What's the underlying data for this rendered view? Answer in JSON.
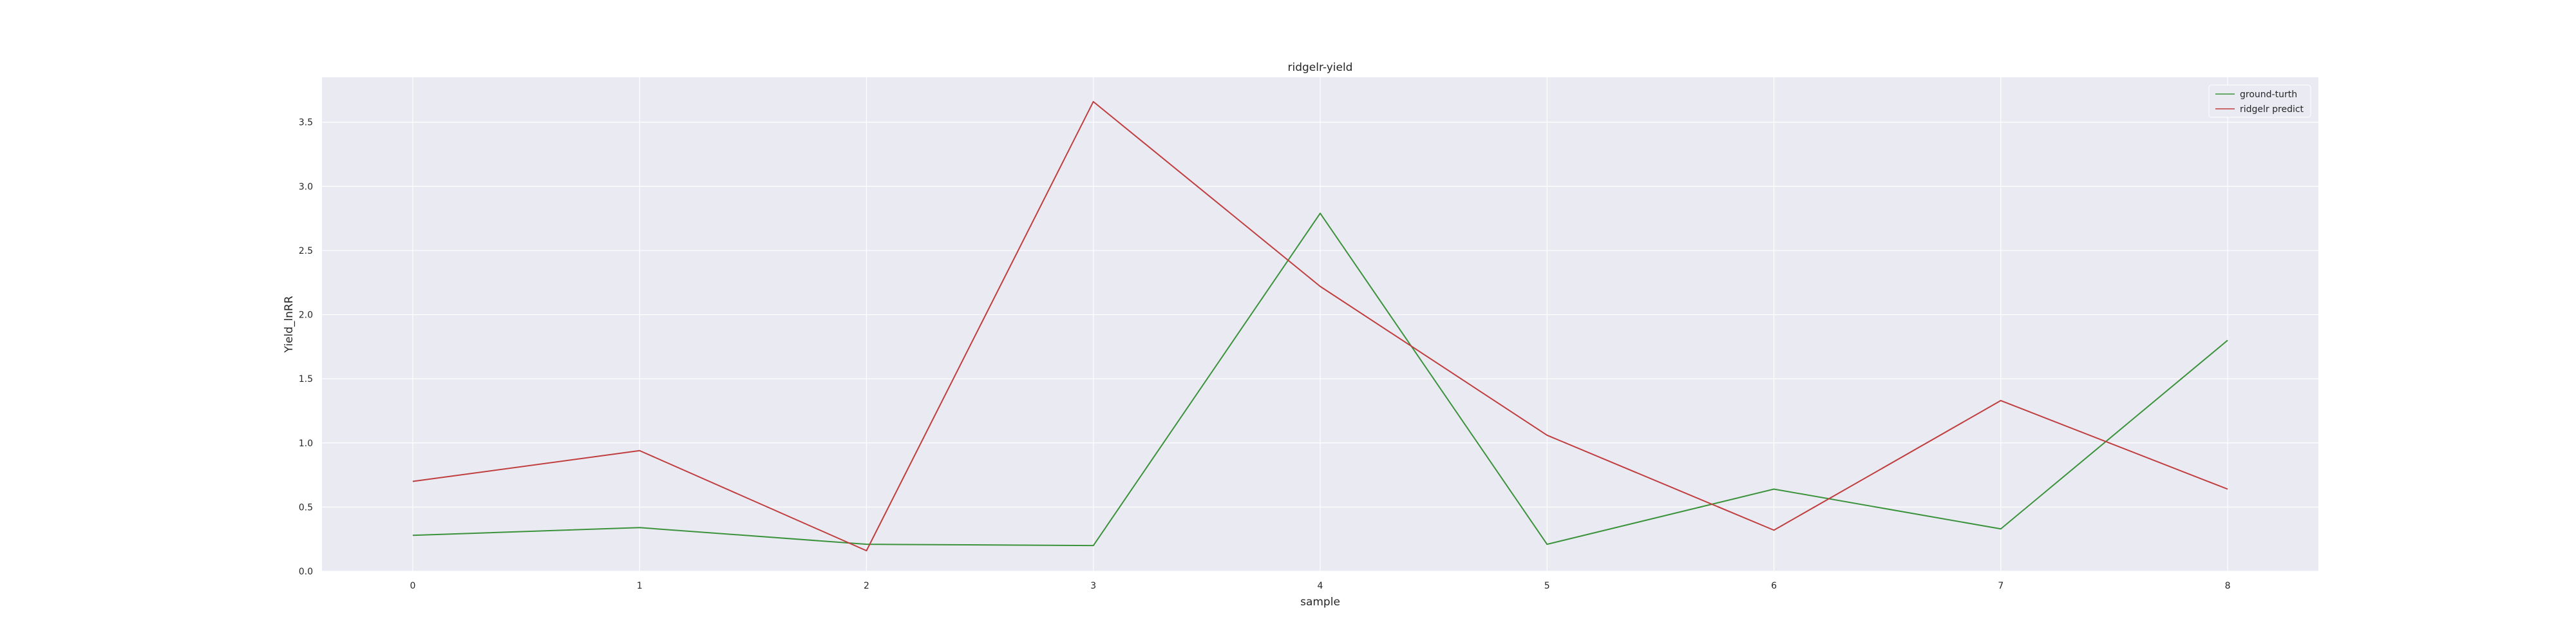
{
  "chart_data": {
    "type": "line",
    "title": "ridgelr-yield",
    "xlabel": "sample",
    "ylabel": "Yield_lnRR",
    "x": [
      0,
      1,
      2,
      3,
      4,
      5,
      6,
      7,
      8
    ],
    "x_ticks": [
      "0",
      "1",
      "2",
      "3",
      "4",
      "5",
      "6",
      "7",
      "8"
    ],
    "y_ticks": [
      "0.0",
      "0.5",
      "1.0",
      "1.5",
      "2.0",
      "2.5",
      "3.0",
      "3.5"
    ],
    "xlim": [
      -0.4,
      8.4
    ],
    "ylim": [
      0,
      3.85
    ],
    "grid": true,
    "legend_position": "top-right",
    "series": [
      {
        "name": "ground-turth",
        "color": "#3a923a",
        "values": [
          0.28,
          0.34,
          0.21,
          0.2,
          2.79,
          0.21,
          0.64,
          0.33,
          1.8
        ]
      },
      {
        "name": "ridgelr predict",
        "color": "#c03d3e",
        "values": [
          0.7,
          0.94,
          0.16,
          3.66,
          2.22,
          1.06,
          0.32,
          1.33,
          0.64
        ]
      }
    ]
  },
  "style": {
    "plot_background": "#eaeaf2",
    "grid_color": "#ffffff",
    "text_color": "#262626"
  }
}
